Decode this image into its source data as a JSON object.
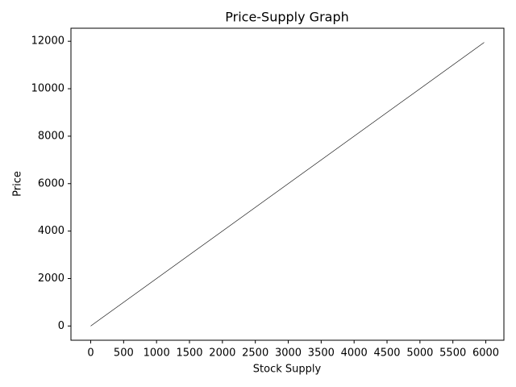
{
  "chart_data": {
    "type": "line",
    "title": "Price-Supply Graph",
    "x_label": "Stock Supply",
    "y_label": "Price",
    "series": [
      {
        "color": "#000000",
        "x": [
          0,
          5975
        ],
        "values": [
          0,
          11950
        ]
      }
    ],
    "xlim": [
      -300,
      6275
    ],
    "ylim": [
      -600,
      12550
    ],
    "xticks": [
      0,
      500,
      1000,
      1500,
      2000,
      2500,
      3000,
      3500,
      4000,
      4500,
      5000,
      5500,
      6000
    ],
    "yticks": [
      0,
      2000,
      4000,
      6000,
      8000,
      10000,
      12000
    ]
  }
}
